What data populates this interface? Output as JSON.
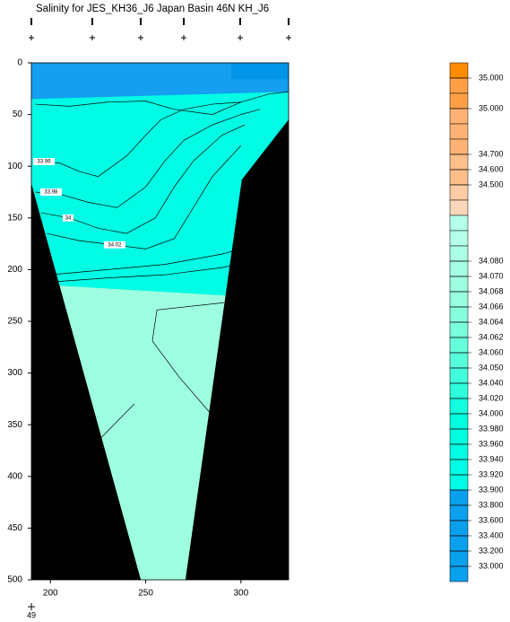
{
  "chart_data": {
    "type": "contour",
    "title": "Salinity for JES_KH36_J6 Japan Basin 46N KH_J6",
    "footnote": "49",
    "xlim": [
      190,
      325
    ],
    "ylim": [
      0,
      500
    ],
    "y_inverted": true,
    "xticks": [
      200,
      250,
      300
    ],
    "yticks": [
      0,
      50,
      100,
      150,
      200,
      250,
      300,
      350,
      400,
      450,
      500
    ],
    "regions": [
      {
        "color": "#00fce4",
        "x": [
          190,
          325,
          325,
          190
        ],
        "y": [
          0,
          0,
          500,
          500
        ]
      },
      {
        "color": "#149ff0",
        "x": [
          190,
          325,
          325,
          190
        ],
        "y": [
          0,
          0,
          28,
          35
        ]
      },
      {
        "color": "#0095e8",
        "x": [
          295,
          325,
          325,
          295
        ],
        "y": [
          0,
          0,
          16,
          16
        ]
      },
      {
        "color": "#9effe0",
        "x": [
          200,
          300,
          300,
          200
        ],
        "y": [
          215,
          226,
          500,
          500
        ]
      },
      {
        "color": "#000000",
        "x": [
          190,
          247.4,
          190
        ],
        "y": [
          117,
          500,
          500
        ]
      },
      {
        "color": "#000000",
        "x": [
          325,
          300.5,
          270.9,
          325
        ],
        "y": [
          55,
          113,
          500,
          500
        ]
      }
    ],
    "contours": [
      {
        "x": [
          192,
          210,
          230,
          250,
          265,
          285,
          300,
          315,
          325
        ],
        "y": [
          40,
          42,
          38,
          37,
          45,
          50,
          38,
          30,
          28
        ]
      },
      {
        "x": [
          192,
          205,
          215,
          225,
          240,
          250,
          258,
          270,
          285,
          300
        ],
        "y": [
          95,
          97,
          105,
          110,
          90,
          70,
          55,
          45,
          40,
          38
        ]
      },
      {
        "x": [
          192,
          205,
          220,
          235,
          250,
          260,
          270,
          285,
          300,
          310
        ],
        "y": [
          125,
          127,
          135,
          140,
          120,
          95,
          75,
          60,
          50,
          45
        ]
      },
      {
        "x": [
          195,
          210,
          225,
          240,
          255,
          265,
          275,
          290,
          302
        ],
        "y": [
          145,
          150,
          160,
          165,
          150,
          120,
          95,
          70,
          60
        ]
      },
      {
        "x": [
          198,
          215,
          233,
          250,
          265,
          275,
          285,
          300
        ],
        "y": [
          165,
          172,
          176,
          180,
          170,
          140,
          110,
          80
        ]
      },
      {
        "x": [
          200,
          230,
          260,
          290,
          300
        ],
        "y": [
          205,
          200,
          195,
          185,
          180
        ]
      },
      {
        "x": [
          200,
          230,
          260,
          290,
          298
        ],
        "y": [
          212,
          208,
          205,
          198,
          195
        ]
      },
      {
        "x": [
          291,
          255.9,
          253.5,
          267.6,
          284
        ],
        "y": [
          232,
          239,
          269,
          304,
          339
        ]
      },
      {
        "x": [
          244,
          225.3,
          223
        ],
        "y": [
          330,
          365,
          460
        ]
      }
    ],
    "contour_labels": [
      {
        "text": "33.96",
        "x": 196.6,
        "y": 95.5
      },
      {
        "text": "33.98",
        "x": 200.3,
        "y": 125
      },
      {
        "text": "34",
        "x": 209.3,
        "y": 150
      },
      {
        "text": "34.02",
        "x": 233.7,
        "y": 176
      }
    ],
    "colorbar": {
      "colors": [
        "#ff8c00",
        "#ff9f45",
        "#ff9f45",
        "#ffb273",
        "#ffb273",
        "#ffb273",
        "#ffbf8a",
        "#ffbf8a",
        "#ffcca3",
        "#fcd6b8",
        "#b4ffea",
        "#b4ffea",
        "#aaffe6",
        "#a4ffe4",
        "#9effe0",
        "#98ffe0",
        "#88ffdc",
        "#7affdc",
        "#66ffdc",
        "#55ffdc",
        "#40ffdc",
        "#2cffdc",
        "#14ffde",
        "#00ffe0",
        "#00ffe0",
        "#00fde2",
        "#00fce4",
        "#00fce4",
        "#0aa0ee",
        "#0aa0ee",
        "#0aa0ee",
        "#0aa0ee",
        "#0aa0ee",
        "#0aa0ee"
      ],
      "levels": [
        {
          "value": 35.0,
          "label": "35.000"
        },
        null,
        {
          "value": 35.0,
          "label": "35.000"
        },
        null,
        null,
        {
          "value": 34.7,
          "label": "34.700"
        },
        {
          "value": 34.6,
          "label": "34.600"
        },
        {
          "value": 34.5,
          "label": "34.500"
        },
        null,
        null,
        null,
        null,
        {
          "value": 34.08,
          "label": "34.080"
        },
        {
          "value": 34.07,
          "label": "34.070"
        },
        {
          "value": 34.068,
          "label": "34.068"
        },
        {
          "value": 34.066,
          "label": "34.066"
        },
        {
          "value": 34.064,
          "label": "34.064"
        },
        {
          "value": 34.062,
          "label": "34.062"
        },
        {
          "value": 34.06,
          "label": "34.060"
        },
        {
          "value": 34.05,
          "label": "34.050"
        },
        {
          "value": 34.04,
          "label": "34.040"
        },
        {
          "value": 34.02,
          "label": "34.020"
        },
        {
          "value": 34.0,
          "label": "34.000"
        },
        {
          "value": 33.98,
          "label": "33.980"
        },
        {
          "value": 33.96,
          "label": "33.960"
        },
        {
          "value": 33.94,
          "label": "33.940"
        },
        {
          "value": 33.92,
          "label": "33.920"
        },
        {
          "value": 33.9,
          "label": "33.900"
        },
        {
          "value": 33.8,
          "label": "33.800"
        },
        {
          "value": 33.6,
          "label": "33.600"
        },
        {
          "value": 33.4,
          "label": "33.400"
        },
        {
          "value": 33.2,
          "label": "33.200"
        },
        {
          "value": 33.0,
          "label": "33.000"
        },
        null
      ]
    }
  }
}
